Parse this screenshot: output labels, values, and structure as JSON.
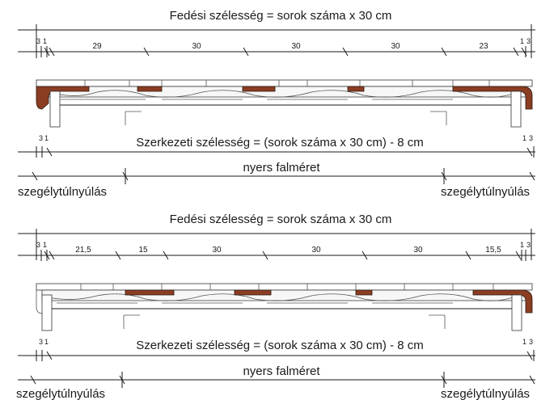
{
  "diagram": {
    "colors": {
      "ink": "#1a1a1a",
      "brown_tile": "#8b3d22",
      "tile_fill": "#f7f7f7"
    },
    "top": {
      "cover_label": "Fedési szélesség = sorok száma x 30 cm",
      "left_small": "3",
      "left_small2": "1",
      "right_small": "1",
      "right_small2": "3",
      "segments": [
        "29",
        "30",
        "30",
        "30",
        "23"
      ],
      "structural_label": "Szerkezeti szélesség = (sorok száma x 30 cm) - 8 cm",
      "struct_left_small": "3",
      "struct_left_small2": "1",
      "struct_right_small": "1",
      "struct_right_small2": "3",
      "raw_wall_label": "nyers falméret",
      "overhang_left": "szegélytúlnyúlás",
      "overhang_right": "szegélytúlnyúlás"
    },
    "bottom": {
      "cover_label": "Fedési szélesség = sorok száma x 30 cm",
      "left_small": "3",
      "left_small2": "1",
      "right_small": "1",
      "right_small2": "3",
      "segments": [
        "21,5",
        "15",
        "30",
        "30",
        "30",
        "15,5"
      ],
      "structural_label": "Szerkezeti szélesség = (sorok száma x 30 cm) - 8 cm",
      "struct_left_small": "3",
      "struct_left_small2": "1",
      "struct_right_small": "1",
      "struct_right_small2": "3",
      "raw_wall_label": "nyers falméret",
      "overhang_left": "szegélytúlnyúlás",
      "overhang_right": "szegélytúlnyúlás"
    }
  }
}
